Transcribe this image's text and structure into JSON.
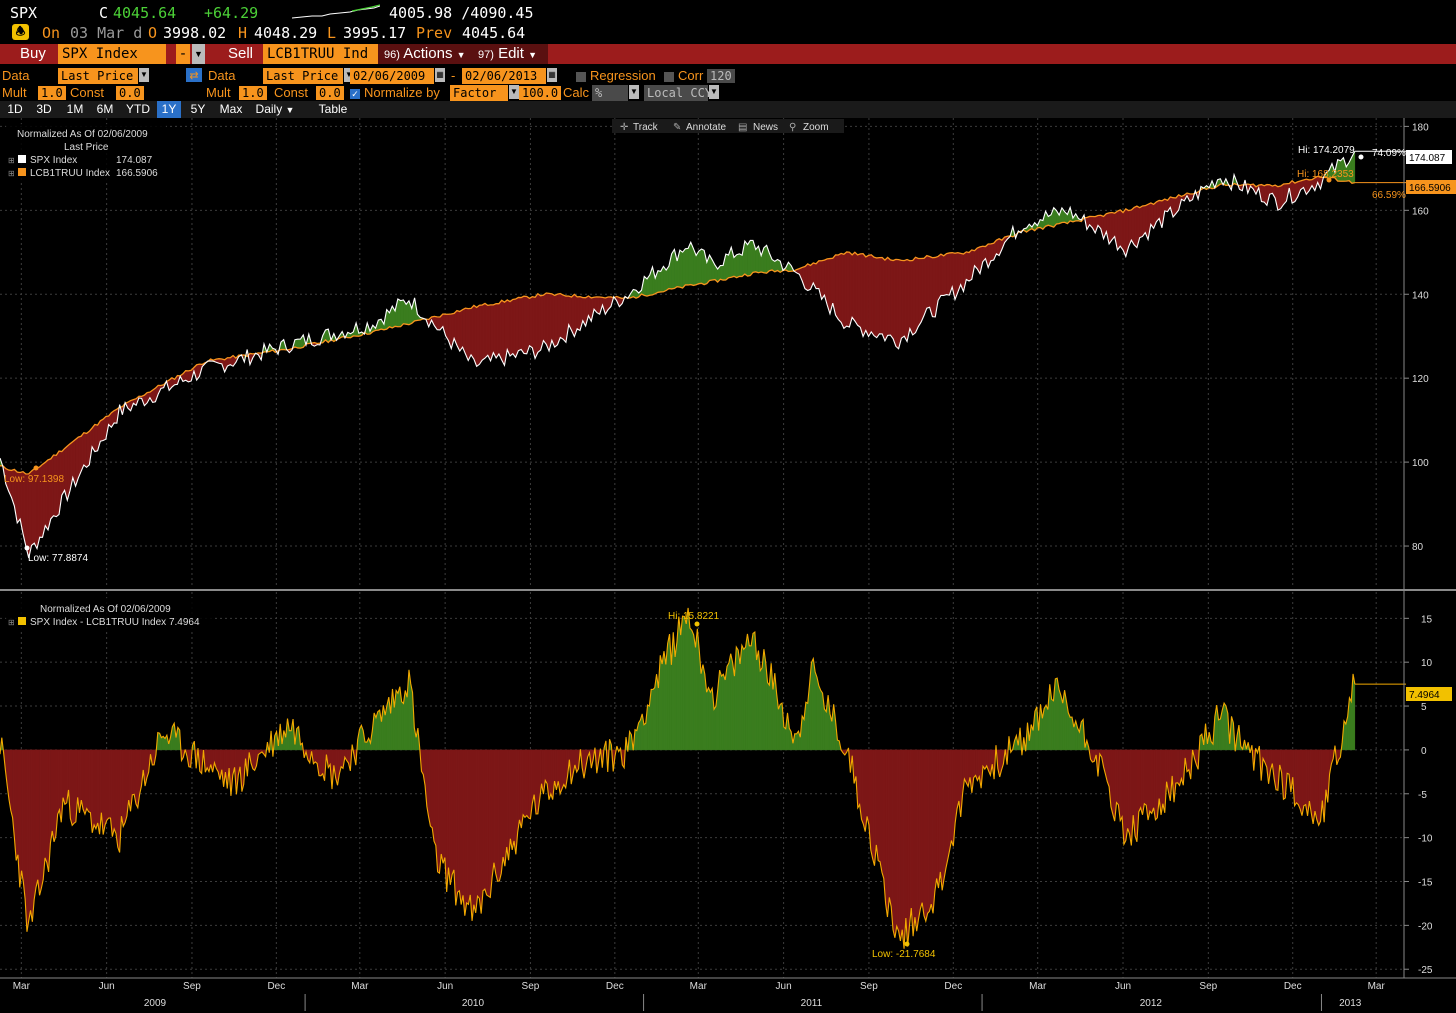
{
  "quote": {
    "symbol": "SPX",
    "close_prefix": "C",
    "last": "4045.64",
    "change": "+64.29",
    "range": "4005.98 /4090.45",
    "on_label": "On",
    "date_label": "03 Mar d",
    "open_label": "O",
    "open": "3998.02",
    "high_label": "H",
    "high": "4048.29",
    "low_label": "L",
    "low": "3995.17",
    "prev_label": "Prev",
    "prev": "4045.64"
  },
  "actionbar": {
    "buy_label": "Buy",
    "buy_security": "SPX Index",
    "sell_label": "Sell",
    "sell_security": "LCB1TRUU Ind",
    "actions_num": "96)",
    "actions_label": "Actions",
    "edit_num": "97)",
    "edit_label": "Edit"
  },
  "controls": {
    "data1_label": "Data",
    "data1_value": "Last Price",
    "data2_label": "Data",
    "data2_value": "Last Price",
    "start_date": "02/06/2009",
    "end_date": "02/06/2013",
    "regression_label": "Regression",
    "corr_label": "Corr",
    "corr_value": "120",
    "mult1_label": "Mult",
    "mult1_value": "1.0",
    "const1_label": "Const",
    "const1_value": "0.0",
    "mult2_label": "Mult",
    "mult2_value": "1.0",
    "const2_label": "Const",
    "const2_value": "0.0",
    "normalize_label": "Normalize by",
    "normalize_value": "Factor",
    "factor_value": "100.0",
    "calc_label": "Calc",
    "calc_value": "%",
    "ccy_value": "Local CCY"
  },
  "periods": [
    "1D",
    "3D",
    "1M",
    "6M",
    "YTD",
    "1Y",
    "5Y",
    "Max"
  ],
  "selected_period": "1Y",
  "frequency": "Daily",
  "table_label": "Table",
  "toolbar": {
    "track": "Track",
    "annotate": "Annotate",
    "news": "News",
    "zoom": "Zoom"
  },
  "colors": {
    "spx_line": "#ffffff",
    "lcb_line": "#f7941d",
    "outperform_fill": "#3a7d1e",
    "underperform_fill": "#7d1717",
    "spread_line": "#f2a900",
    "accent_orange": "#f7941d",
    "selected_blue": "#2a70c8",
    "grid": "#3c3c3c"
  },
  "upper_legend": {
    "title": "Normalized As Of 02/06/2009",
    "subtitle": "Last Price",
    "items": [
      {
        "name": "SPX Index",
        "value": "174.087",
        "color": "#ffffff"
      },
      {
        "name": "LCB1TRUU Index",
        "value": "166.5906",
        "color": "#f7941d"
      }
    ]
  },
  "lower_legend": {
    "title": "Normalized As Of 02/06/2009",
    "item": "SPX Index - LCB1TRUU Index 7.4964"
  },
  "upper_annotations": {
    "hi_spx": "Hi: 174.2079",
    "hi_lcb": "Hi: 168.2353",
    "pct_spx": "74.09%",
    "pct_lcb": "66.59%",
    "last_spx": "174.087",
    "last_lcb": "166.5906",
    "low_lcb": "Low: 97.1398",
    "low_spx": "Low: 77.8874"
  },
  "lower_annotations": {
    "hi": "Hi: 15.8221",
    "low": "Low: -21.7684",
    "last": "7.4964"
  },
  "x_axis": {
    "months": [
      "Mar",
      "Jun",
      "Sep",
      "Dec",
      "Mar",
      "Jun",
      "Sep",
      "Dec",
      "Mar",
      "Jun",
      "Sep",
      "Dec",
      "Mar",
      "Jun",
      "Sep",
      "Dec",
      "Mar"
    ],
    "years": [
      "2009",
      "2010",
      "2011",
      "2012",
      "2013"
    ]
  },
  "chart_data": [
    {
      "type": "line",
      "y_ticks": [
        80,
        100,
        120,
        140,
        160,
        180
      ],
      "ylim": [
        70,
        182
      ],
      "x": [
        "2009-02-06",
        "2009-03-09",
        "2009-06-15",
        "2009-09-15",
        "2009-12-15",
        "2010-03-15",
        "2010-04-23",
        "2010-07-02",
        "2010-09-15",
        "2010-12-15",
        "2011-02-18",
        "2011-03-16",
        "2011-04-29",
        "2011-06-15",
        "2011-08-08",
        "2011-10-03",
        "2011-12-15",
        "2012-02-15",
        "2012-04-02",
        "2012-06-04",
        "2012-09-14",
        "2012-11-15",
        "2012-12-31",
        "2013-02-06"
      ],
      "series": [
        {
          "name": "SPX Index",
          "values": [
            101,
            78,
            112,
            122,
            128,
            133,
            139,
            123,
            127,
            140,
            152,
            147,
            152,
            145,
            133,
            129,
            143,
            157,
            160,
            151,
            168,
            162,
            167,
            174.087
          ]
        },
        {
          "name": "LCB1TRUU Index",
          "values": [
            99,
            97.1,
            113,
            124,
            127,
            131,
            133,
            137,
            140,
            139,
            142,
            143,
            145,
            146,
            150,
            148,
            150,
            155,
            157,
            160,
            166,
            166,
            168,
            166.5906
          ]
        }
      ]
    },
    {
      "type": "area",
      "series_name": "SPX Index - LCB1TRUU Index",
      "y_ticks": [
        -25,
        -20,
        -15,
        -10,
        -5,
        0,
        5,
        10,
        15
      ],
      "ylim": [
        -26,
        18
      ],
      "x": [
        "2009-02-06",
        "2009-03-09",
        "2009-04-15",
        "2009-06-15",
        "2009-08-01",
        "2009-10-15",
        "2009-12-15",
        "2010-02-01",
        "2010-04-23",
        "2010-05-20",
        "2010-07-02",
        "2010-09-01",
        "2010-10-15",
        "2010-12-15",
        "2011-01-15",
        "2011-02-18",
        "2011-03-16",
        "2011-04-29",
        "2011-06-15",
        "2011-07-01",
        "2011-08-08",
        "2011-10-03",
        "2011-11-15",
        "2011-12-15",
        "2012-02-15",
        "2012-03-20",
        "2012-05-01",
        "2012-06-04",
        "2012-08-01",
        "2012-09-14",
        "2012-10-20",
        "2012-11-15",
        "2012-12-31",
        "2013-02-06"
      ],
      "values": [
        1,
        -20.5,
        -6,
        -10,
        2,
        -4,
        3,
        -3,
        8,
        -12,
        -19,
        -7,
        -2,
        0,
        8,
        15.8,
        6,
        13,
        1,
        9,
        0,
        -21.77,
        -16,
        -4,
        1,
        7,
        0,
        -10,
        -4,
        4,
        -1,
        -3,
        -8,
        7.4964
      ]
    }
  ]
}
